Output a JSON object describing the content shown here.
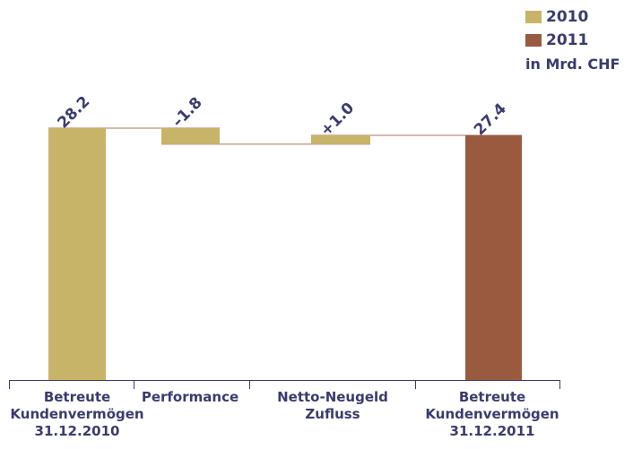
{
  "chart_data": {
    "type": "bar",
    "subtype": "waterfall",
    "unit": "in Mrd. CHF",
    "categories": [
      "Betreute\nKundenvermögen\n31.12.2010",
      "Performance",
      "Netto-Neugeld\nZufluss",
      "Betreute\nKundenvermögen\n31.12.2011"
    ],
    "values": [
      28.2,
      -1.8,
      1.0,
      27.4
    ],
    "value_labels": [
      "28.2",
      "–1.8",
      "+1.0",
      "27.4"
    ],
    "series": [
      {
        "name": "2010",
        "color": "#c8b468"
      },
      {
        "name": "2011",
        "color": "#9a5a40"
      }
    ],
    "bar_colors": [
      "#c8b468",
      "#c8b468",
      "#c8b468",
      "#9a5a40"
    ],
    "legend_position": "top-right",
    "grid": false,
    "ylim": [
      0,
      28.6
    ]
  },
  "colors": {
    "text": "#3b3b70",
    "axis": "#3b3b70",
    "connector": "#b5735a"
  }
}
